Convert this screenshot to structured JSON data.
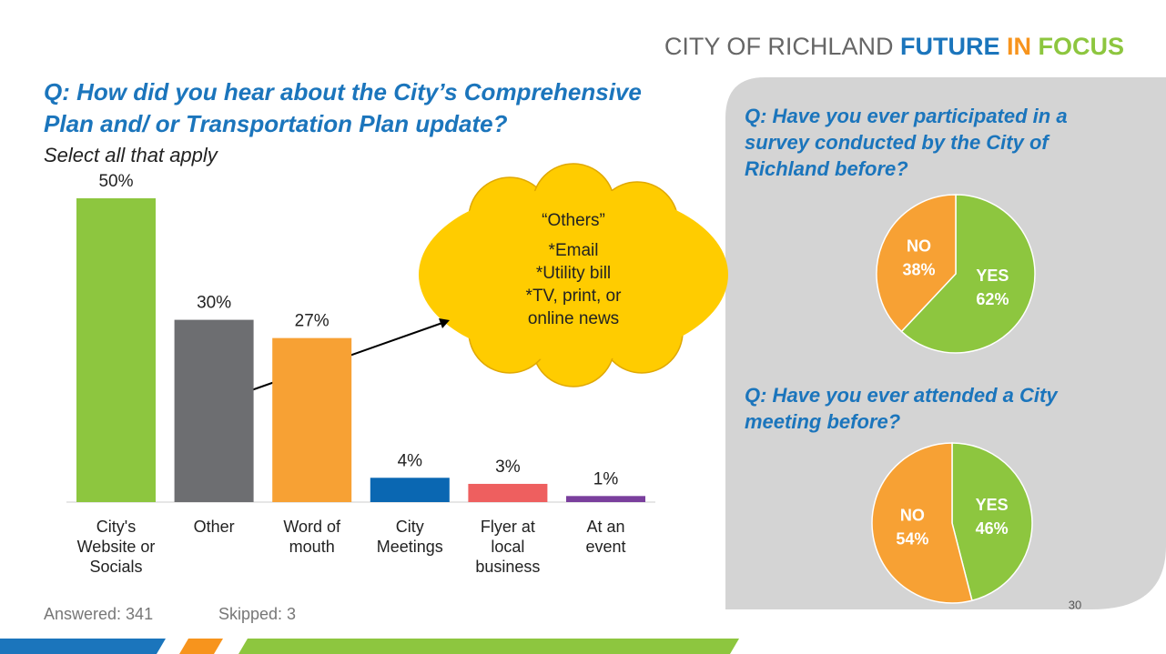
{
  "brand": {
    "city": "CITY OF RICHLAND",
    "future": "FUTURE",
    "in": "IN",
    "focus": "FOCUS"
  },
  "question": {
    "line1": "Q: How did you hear about the City’s Comprehensive",
    "line2": "Plan and/ or Transportation Plan update?",
    "note": "Select all that apply"
  },
  "callout": {
    "lines": [
      "“Others”",
      "*Email",
      "*Utility bill",
      "*TV, print, or",
      "online news"
    ]
  },
  "footer": {
    "answered": "Answered: 341",
    "skipped": "Skipped: 3",
    "page": "30"
  },
  "chart_data": [
    {
      "type": "bar",
      "categories": [
        "City's Website or Socials",
        "Other",
        "Word of mouth",
        "City Meetings",
        "Flyer at local business",
        "At an event"
      ],
      "values": [
        50,
        30,
        27,
        4,
        3,
        1
      ],
      "value_labels": [
        "50%",
        "30%",
        "27%",
        "4%",
        "3%",
        "1%"
      ],
      "colors": [
        "#8dc63f",
        "#6d6e71",
        "#f7a134",
        "#0a67b2",
        "#ee5f5f",
        "#7a3f9d"
      ]
    },
    {
      "type": "pie",
      "title": "Q: Have you ever participated in a survey conducted by the City of Richland before?",
      "categories": [
        "YES",
        "NO"
      ],
      "values": [
        62,
        38
      ],
      "value_labels": [
        "62%",
        "38%"
      ],
      "colors": [
        "#8dc63f",
        "#f7a134"
      ]
    },
    {
      "type": "pie",
      "title": "Q: Have you ever attended a City meeting before?",
      "categories": [
        "YES",
        "NO"
      ],
      "values": [
        46,
        54
      ],
      "value_labels": [
        "46%",
        "54%"
      ],
      "colors": [
        "#8dc63f",
        "#f7a134"
      ]
    }
  ]
}
